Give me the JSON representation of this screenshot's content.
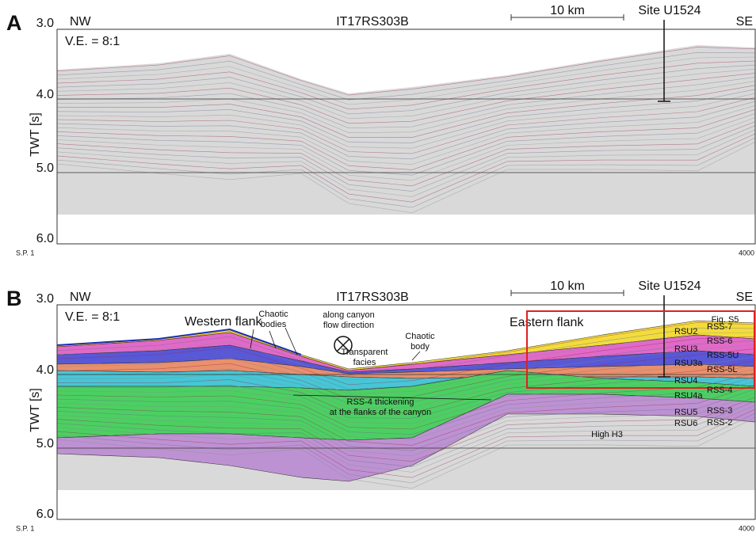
{
  "panels": [
    {
      "label": "A",
      "nw": "NW",
      "title": "IT17RS303B",
      "scale": "10 km",
      "site": "Site U1524",
      "se": "SE",
      "ve": "V.E. = 8:1",
      "y_axis_label": "TWT [s]",
      "y_ticks": [
        "3.0",
        "4.0",
        "5.0",
        "6.0"
      ],
      "sp_start": "S.P. 1",
      "sp_end": "4000"
    },
    {
      "label": "B",
      "nw": "NW",
      "title": "IT17RS303B",
      "scale": "10 km",
      "site": "Site U1524",
      "se": "SE",
      "ve": "V.E. = 8:1",
      "y_axis_label": "TWT [s]",
      "y_ticks": [
        "3.0",
        "4.0",
        "5.0",
        "6.0"
      ],
      "sp_start": "S.P. 1",
      "sp_end": "4000",
      "annotations": [
        {
          "lines": [
            "Western flank"
          ]
        },
        {
          "lines": [
            "Chaotic",
            "bodies"
          ]
        },
        {
          "lines": [
            "along canyon",
            "flow direction"
          ]
        },
        {
          "lines": [
            "Chaotic",
            "body"
          ]
        },
        {
          "lines": [
            "Transparent",
            "facies"
          ]
        },
        {
          "lines": [
            "RSS-4 thickening",
            "at the flanks of the canyon"
          ]
        },
        {
          "lines": [
            "Eastern flank"
          ]
        },
        {
          "lines": [
            "Fig. S5"
          ]
        },
        {
          "lines": [
            "High H3"
          ]
        }
      ],
      "units": [
        {
          "text": "RSU2",
          "color": "#5a3fc0"
        },
        {
          "text": "RSU3",
          "color": "#2b3ee0"
        },
        {
          "text": "RSU3a",
          "color": "#e02020"
        },
        {
          "text": "RSU4",
          "color": "#1a7fd0"
        },
        {
          "text": "RSU4a",
          "color": "#111111"
        },
        {
          "text": "RSU5",
          "color": "#9040b0"
        },
        {
          "text": "RSU6",
          "color": "#111111"
        }
      ],
      "surfaces": [
        "RSS-7",
        "RSS-6",
        "RSS-5U",
        "RSS-5L",
        "RSS-4",
        "RSS-3",
        "RSS-2"
      ]
    }
  ]
}
